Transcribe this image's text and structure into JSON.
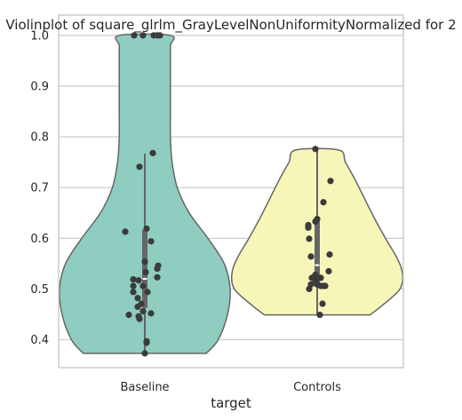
{
  "chart_data": {
    "type": "violin",
    "title": "Violinplot of square_glrlm_GrayLevelNonUniformityNormalized for 2",
    "xlabel": "target",
    "ylabel": "",
    "ylim": [
      0.345,
      1.04
    ],
    "yticks": [
      0.4,
      0.5,
      0.6,
      0.7,
      0.8,
      0.9,
      1.0
    ],
    "ytick_labels": [
      "0.4",
      "0.5",
      "0.6",
      "0.7",
      "0.8",
      "0.9",
      "1.0"
    ],
    "grid": true,
    "categories": [
      "Baseline",
      "Controls"
    ],
    "series": [
      {
        "name": "Baseline",
        "color": "#8ecdc0",
        "range": [
          0.373,
          1.0
        ],
        "whisker": [
          0.373,
          0.767
        ],
        "q1": 0.463,
        "q3": 0.617,
        "median": 0.52,
        "profile": [
          [
            0.373,
            0.72
          ],
          [
            0.4,
            0.86
          ],
          [
            0.45,
            0.97
          ],
          [
            0.5,
            1.0
          ],
          [
            0.55,
            0.93
          ],
          [
            0.6,
            0.74
          ],
          [
            0.65,
            0.52
          ],
          [
            0.7,
            0.38
          ],
          [
            0.75,
            0.32
          ],
          [
            0.8,
            0.3
          ],
          [
            0.85,
            0.3
          ],
          [
            0.9,
            0.3
          ],
          [
            0.95,
            0.3
          ],
          [
            0.98,
            0.3
          ],
          [
            1.0,
            0.3
          ]
        ],
        "points": [
          [
            -0.12,
            1.0
          ],
          [
            -0.02,
            1.0
          ],
          [
            0.1,
            1.0
          ],
          [
            0.14,
            1.0
          ],
          [
            0.17,
            1.0
          ],
          [
            -0.06,
            0.741
          ],
          [
            0.09,
            0.768
          ],
          [
            -0.22,
            0.613
          ],
          [
            0.02,
            0.619
          ],
          [
            0.07,
            0.594
          ],
          [
            0.0,
            0.554
          ],
          [
            0.15,
            0.546
          ],
          [
            0.14,
            0.54
          ],
          [
            0.01,
            0.533
          ],
          [
            0.14,
            0.523
          ],
          [
            -0.13,
            0.519
          ],
          [
            -0.07,
            0.517
          ],
          [
            -0.13,
            0.506
          ],
          [
            -0.02,
            0.506
          ],
          [
            -0.13,
            0.494
          ],
          [
            0.03,
            0.494
          ],
          [
            -0.08,
            0.482
          ],
          [
            -0.04,
            0.471
          ],
          [
            -0.08,
            0.465
          ],
          [
            -0.02,
            0.456
          ],
          [
            0.07,
            0.452
          ],
          [
            -0.18,
            0.449
          ],
          [
            -0.07,
            0.446
          ],
          [
            -0.06,
            0.441
          ],
          [
            0.02,
            0.397
          ],
          [
            0.02,
            0.394
          ],
          [
            0.0,
            0.373
          ]
        ]
      },
      {
        "name": "Controls",
        "color": "#f7f6b9",
        "range": [
          0.449,
          0.774
        ],
        "whisker": [
          0.449,
          0.774
        ],
        "q1": 0.51,
        "q3": 0.636,
        "median": 0.547,
        "profile": [
          [
            0.449,
            0.62
          ],
          [
            0.47,
            0.78
          ],
          [
            0.5,
            0.97
          ],
          [
            0.53,
            1.0
          ],
          [
            0.56,
            0.94
          ],
          [
            0.6,
            0.8
          ],
          [
            0.64,
            0.67
          ],
          [
            0.68,
            0.55
          ],
          [
            0.72,
            0.43
          ],
          [
            0.75,
            0.33
          ],
          [
            0.774,
            0.25
          ]
        ],
        "points": [
          [
            -0.02,
            0.776
          ],
          [
            0.15,
            0.713
          ],
          [
            0.07,
            0.671
          ],
          [
            0.0,
            0.638
          ],
          [
            -0.02,
            0.633
          ],
          [
            -0.1,
            0.626
          ],
          [
            -0.1,
            0.621
          ],
          [
            -0.09,
            0.599
          ],
          [
            0.14,
            0.568
          ],
          [
            -0.07,
            0.564
          ],
          [
            0.13,
            0.535
          ],
          [
            -0.02,
            0.528
          ],
          [
            -0.06,
            0.522
          ],
          [
            0.04,
            0.522
          ],
          [
            -0.02,
            0.517
          ],
          [
            -0.07,
            0.509
          ],
          [
            0.0,
            0.509
          ],
          [
            0.09,
            0.506
          ],
          [
            0.04,
            0.506
          ],
          [
            0.07,
            0.506
          ],
          [
            -0.09,
            0.5
          ],
          [
            0.06,
            0.471
          ],
          [
            0.03,
            0.449
          ]
        ]
      }
    ]
  }
}
